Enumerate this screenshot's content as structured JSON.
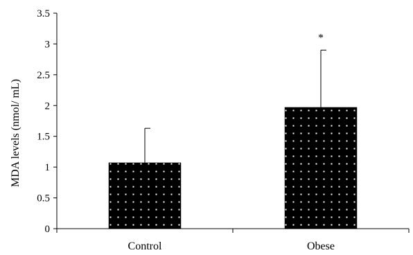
{
  "chart_data": {
    "type": "bar",
    "title": "",
    "xlabel": "",
    "ylabel": "MDA levels (nmol/ mL)",
    "categories": [
      "Control",
      "Obese"
    ],
    "values": [
      1.07,
      1.97
    ],
    "error_upper": [
      1.63,
      2.9
    ],
    "annotations": [
      "",
      "*"
    ],
    "ylim": [
      0,
      3.5
    ],
    "yticks": [
      "0",
      "0.5",
      "1",
      "1.5",
      "2",
      "2.5",
      "3",
      "3.5"
    ],
    "ytick_values": [
      0,
      0.5,
      1,
      1.5,
      2,
      2.5,
      3,
      3.5
    ],
    "grid": false,
    "legend": "none",
    "bar_color": "#000000",
    "bar_pattern": "white-dots"
  }
}
